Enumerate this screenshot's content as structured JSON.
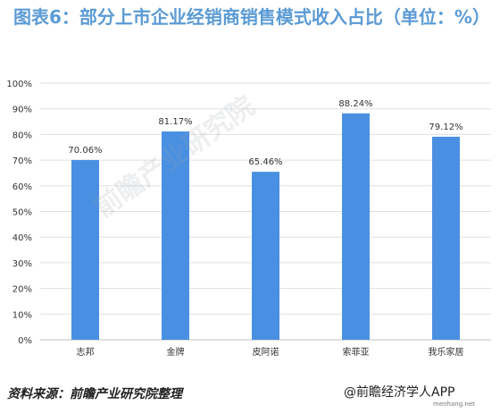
{
  "title": "图表6：部分上市企业经销商销售模式收入占比（单位：%）",
  "source": "资料来源：前瞻产业研究院整理",
  "brand": "@前瞻经济学人APP",
  "brand_sub": "menhang.net",
  "watermark": "前瞻产业研究院",
  "colors": {
    "bar": "#4a90e2",
    "title": "#5b9bd5",
    "grid": "#e0e0e0"
  },
  "chart_data": {
    "type": "bar",
    "categories": [
      "志邦",
      "金牌",
      "皮阿诺",
      "索菲亚",
      "我乐家居"
    ],
    "values": [
      70.06,
      81.17,
      65.46,
      88.24,
      79.12
    ],
    "value_labels": [
      "70.06%",
      "81.17%",
      "65.46%",
      "88.24%",
      "79.12%"
    ],
    "y_ticks": [
      "0%",
      "10%",
      "20%",
      "30%",
      "40%",
      "50%",
      "60%",
      "70%",
      "80%",
      "90%",
      "100%"
    ],
    "ylim": [
      0,
      100
    ],
    "grid": true,
    "legend": "none"
  }
}
